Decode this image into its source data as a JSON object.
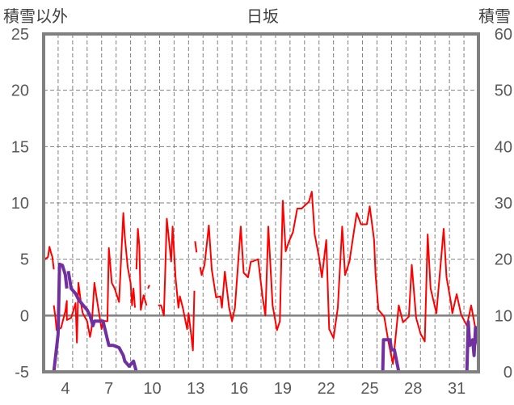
{
  "chart_data": {
    "type": "line",
    "title": "日坂",
    "ylabel": "積雪以外",
    "y2label": "積雪",
    "xlim": [
      3,
      33
    ],
    "ylim": [
      -5,
      25
    ],
    "y2lim": [
      0,
      60
    ],
    "xticks": [
      4,
      7,
      10,
      13,
      16,
      19,
      22,
      25,
      28,
      31
    ],
    "yticks": [
      -5,
      0,
      5,
      10,
      15,
      20,
      25
    ],
    "y2ticks": [
      0,
      10,
      20,
      30,
      40,
      50,
      60
    ],
    "grid": true,
    "colors": {
      "temp": "#ff0000",
      "snow": "#7030a0",
      "axis": "#808080",
      "grid": "#808080",
      "tick_text": "#595959"
    },
    "series": [
      {
        "name": "積雪以外",
        "axis": "left",
        "segments": [
          [
            [
              3.0,
              5.5
            ],
            [
              3.1,
              5.0
            ],
            [
              3.3,
              5.2
            ],
            [
              3.4,
              6.1
            ],
            [
              3.5,
              5.6
            ],
            [
              3.6,
              5.2
            ],
            [
              3.7,
              4.1
            ]
          ],
          [
            [
              3.7,
              0.9
            ],
            [
              3.8,
              0.0
            ],
            [
              3.9,
              -1.3
            ],
            [
              4.2,
              -1.1
            ],
            [
              4.5,
              0.4
            ],
            [
              4.6,
              1.3
            ],
            [
              4.6,
              -0.4
            ],
            [
              4.9,
              -0.2
            ],
            [
              5.2,
              1.1
            ],
            [
              5.3,
              -2.4
            ],
            [
              5.4,
              2.9
            ],
            [
              5.6,
              0.9
            ],
            [
              5.7,
              0.2
            ],
            [
              6.0,
              -0.5
            ],
            [
              6.2,
              -1.9
            ],
            [
              6.3,
              -1.2
            ],
            [
              6.5,
              2.9
            ],
            [
              6.7,
              1.2
            ],
            [
              7.0,
              -1.2
            ],
            [
              7.1,
              -0.5
            ],
            [
              7.4,
              -0.5
            ],
            [
              7.5,
              6.0
            ],
            [
              7.7,
              2.9
            ],
            [
              7.9,
              2.4
            ],
            [
              8.2,
              1.2
            ],
            [
              8.5,
              9.1
            ],
            [
              8.6,
              7.0
            ],
            [
              8.8,
              4.3
            ],
            [
              9.0,
              2.9
            ],
            [
              9.1,
              0.9
            ],
            [
              9.2,
              2.4
            ],
            [
              9.3,
              0.7
            ]
          ],
          [
            [
              9.4,
              4.1
            ],
            [
              9.5,
              7.7
            ],
            [
              9.6,
              6.2
            ],
            [
              9.7,
              0.5
            ],
            [
              9.9,
              1.8
            ],
            [
              10.1,
              0.9
            ]
          ],
          [
            [
              10.2,
              2.4
            ],
            [
              10.3,
              2.7
            ]
          ],
          [
            [
              10.9,
              0.9
            ],
            [
              11.1,
              0.9
            ],
            [
              11.3,
              0.0
            ],
            [
              11.5,
              8.6
            ],
            [
              11.8,
              4.8
            ],
            [
              11.9,
              7.9
            ],
            [
              12.1,
              3.4
            ],
            [
              12.3,
              0.7
            ],
            [
              12.4,
              1.7
            ],
            [
              12.6,
              0.7
            ],
            [
              12.9,
              -1.2
            ],
            [
              13.0,
              0.2
            ],
            [
              13.2,
              -1.9
            ],
            [
              13.3,
              -3.1
            ],
            [
              13.4,
              2.2
            ]
          ],
          [
            [
              13.45,
              6.6
            ],
            [
              13.55,
              5.6
            ]
          ],
          [
            [
              13.8,
              4.3
            ],
            [
              13.9,
              3.6
            ],
            [
              14.1,
              4.5
            ],
            [
              14.4,
              8.0
            ],
            [
              14.6,
              4.1
            ],
            [
              14.9,
              1.6
            ],
            [
              15.2,
              1.7
            ],
            [
              15.3,
              0.7
            ],
            [
              15.5,
              3.9
            ],
            [
              15.8,
              0.7
            ],
            [
              16.0,
              -0.5
            ],
            [
              16.2,
              0.7
            ],
            [
              16.6,
              7.9
            ],
            [
              16.8,
              3.8
            ],
            [
              17.1,
              3.4
            ],
            [
              17.3,
              4.8
            ],
            [
              17.4,
              4.8
            ],
            [
              17.8,
              5.0
            ],
            [
              18.1,
              1.7
            ],
            [
              18.3,
              0.0
            ],
            [
              18.5,
              7.9
            ],
            [
              18.8,
              0.9
            ],
            [
              19.1,
              -1.3
            ],
            [
              19.3,
              -0.5
            ],
            [
              19.5,
              10.2
            ],
            [
              19.7,
              5.7
            ],
            [
              19.9,
              6.5
            ],
            [
              20.2,
              7.4
            ],
            [
              20.5,
              9.5
            ],
            [
              20.8,
              9.5
            ],
            [
              21.3,
              10.1
            ],
            [
              21.5,
              11.0
            ],
            [
              21.7,
              7.2
            ],
            [
              22.0,
              5.2
            ],
            [
              22.2,
              3.4
            ],
            [
              22.5,
              6.7
            ],
            [
              22.7,
              -1.2
            ],
            [
              23.0,
              -2.0
            ],
            [
              23.3,
              0.7
            ],
            [
              23.6,
              7.9
            ],
            [
              23.8,
              3.6
            ],
            [
              24.1,
              4.8
            ],
            [
              24.4,
              7.4
            ],
            [
              24.6,
              9.1
            ],
            [
              24.9,
              8.1
            ],
            [
              25.3,
              8.1
            ],
            [
              25.5,
              9.7
            ],
            [
              25.8,
              6.7
            ],
            [
              25.9,
              3.6
            ],
            [
              26.1,
              0.5
            ],
            [
              26.5,
              -0.1
            ],
            [
              26.8,
              -2.4
            ],
            [
              27.1,
              -4.3
            ],
            [
              27.5,
              0.9
            ],
            [
              27.8,
              -0.6
            ],
            [
              28.2,
              -0.1
            ],
            [
              28.4,
              4.5
            ],
            [
              28.7,
              -0.2
            ],
            [
              29.0,
              -1.6
            ],
            [
              29.3,
              -2.3
            ],
            [
              29.5,
              7.2
            ],
            [
              29.7,
              2.4
            ],
            [
              30.1,
              0.2
            ],
            [
              30.6,
              7.7
            ],
            [
              30.8,
              3.4
            ],
            [
              31.1,
              1.2
            ],
            [
              31.2,
              0.2
            ],
            [
              31.5,
              1.9
            ],
            [
              31.8,
              0.1
            ],
            [
              32.2,
              -0.9
            ],
            [
              32.5,
              0.9
            ],
            [
              32.8,
              -1.2
            ],
            [
              33.0,
              -1.4
            ]
          ]
        ]
      },
      {
        "name": "積雪",
        "axis": "right",
        "segments": [
          [
            [
              3.0,
              0
            ],
            [
              3.7,
              0
            ],
            [
              4.0,
              6.7
            ],
            [
              4.1,
              19.1
            ],
            [
              4.3,
              18.9
            ],
            [
              4.5,
              17.2
            ],
            [
              4.6,
              14.8
            ]
          ],
          [
            [
              4.7,
              17.9
            ],
            [
              4.9,
              14.8
            ],
            [
              5.2,
              13.9
            ],
            [
              5.4,
              12.9
            ],
            [
              5.7,
              11.9
            ],
            [
              6.0,
              11.0
            ],
            [
              6.2,
              10.0
            ],
            [
              6.4,
              8.2
            ],
            [
              6.5,
              9.0
            ],
            [
              7.1,
              9.0
            ],
            [
              7.5,
              4.7
            ],
            [
              7.8,
              4.7
            ],
            [
              8.2,
              4.3
            ],
            [
              8.5,
              2.9
            ],
            [
              8.6,
              1.9
            ],
            [
              8.9,
              1.0
            ],
            [
              9.2,
              1.9
            ],
            [
              9.4,
              0
            ],
            [
              10.4,
              0
            ]
          ],
          [
            [
              10.8,
              0
            ],
            [
              26.4,
              0
            ],
            [
              26.45,
              5.7
            ],
            [
              26.9,
              5.7
            ],
            [
              27.0,
              3.9
            ],
            [
              27.2,
              3.9
            ],
            [
              27.5,
              0
            ],
            [
              32.2,
              0
            ],
            [
              32.3,
              8.9
            ],
            [
              32.4,
              4.7
            ],
            [
              32.6,
              5.7
            ],
            [
              32.7,
              2.9
            ],
            [
              32.8,
              7.9
            ],
            [
              33.0,
              4.7
            ]
          ]
        ]
      }
    ]
  }
}
